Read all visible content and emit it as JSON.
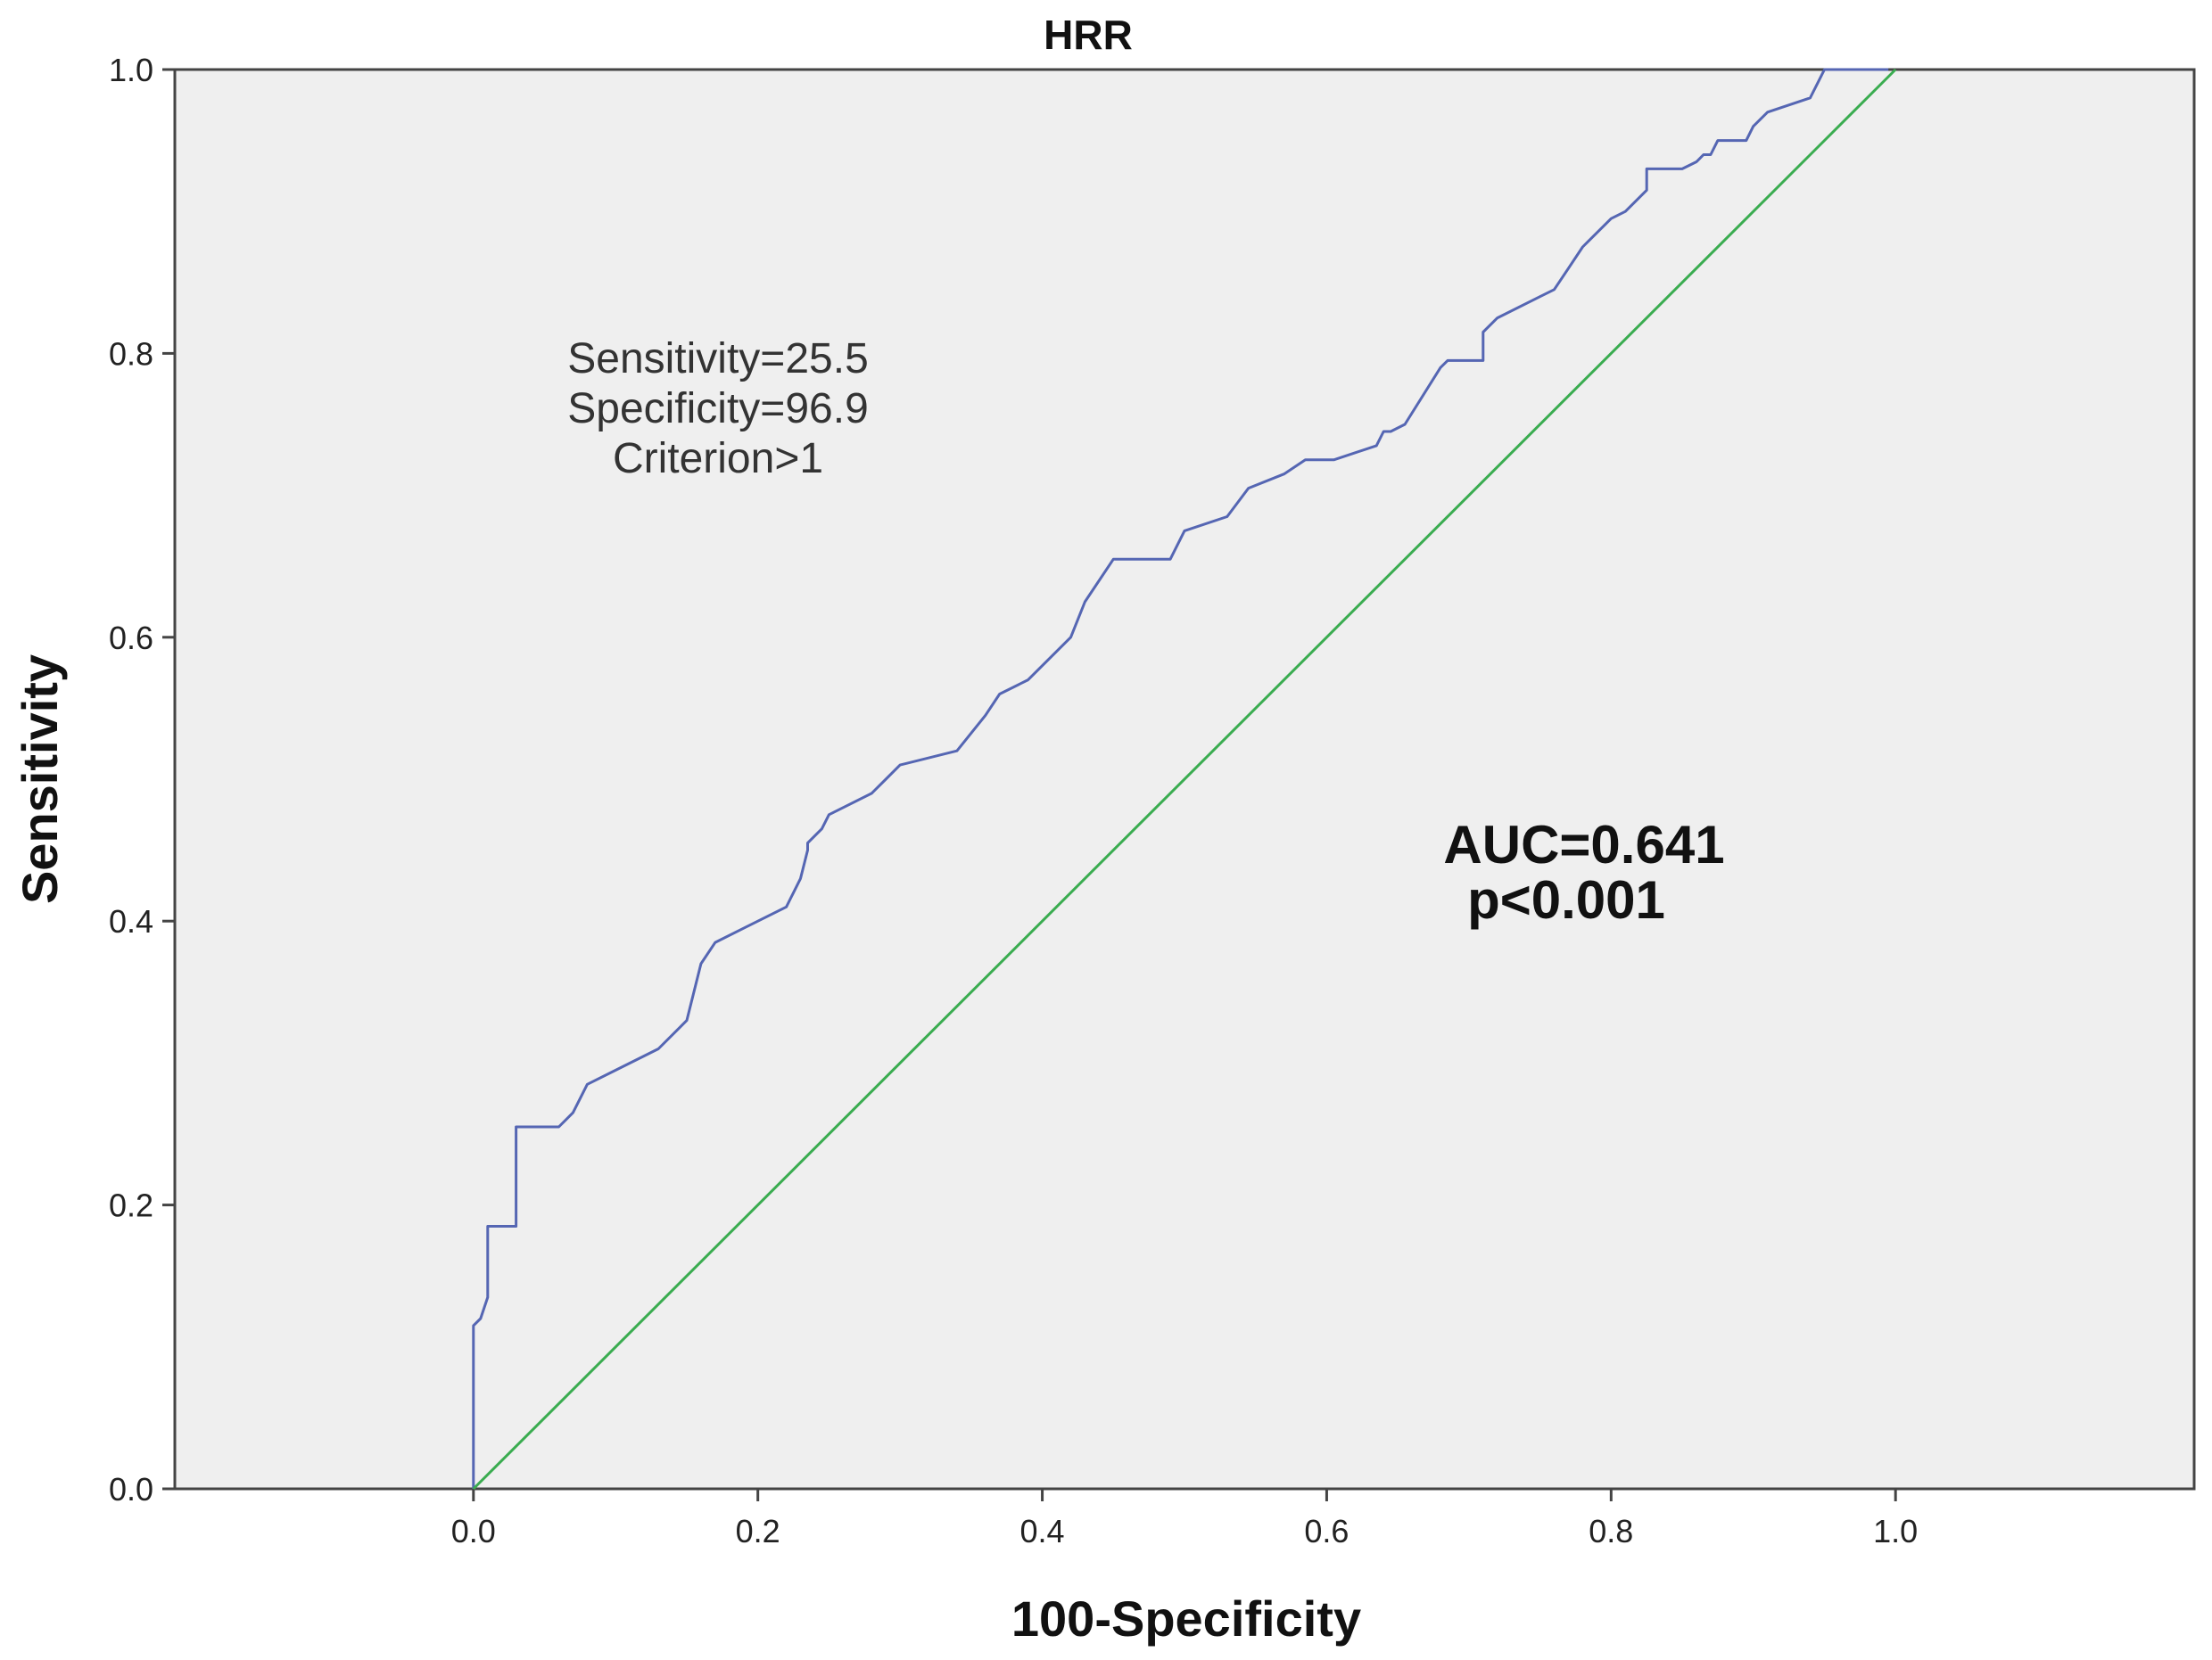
{
  "chart_data": {
    "type": "line",
    "title": "HRR",
    "xlabel": "100-Specificity",
    "ylabel": "Sensitivity",
    "xlim": [
      -0.21,
      1.21
    ],
    "ylim": [
      0,
      1
    ],
    "x_ticks": [
      "0.0",
      "0.2",
      "0.4",
      "0.6",
      "0.8",
      "1.0"
    ],
    "y_ticks": [
      "0.0",
      "0.2",
      "0.4",
      "0.6",
      "0.8",
      "1.0"
    ],
    "grid": false,
    "background": "#efefef",
    "annotations": {
      "criterion": [
        "Sensitivity=25.5",
        "Specificity=96.9",
        "Criterion>1"
      ],
      "stats": [
        "AUC=0.641",
        "p<0.001"
      ]
    },
    "series": [
      {
        "color": "#5566b3",
        "x": [
          0,
          0,
          0.005,
          0.01,
          0.01,
          0.03,
          0.03,
          0.06,
          0.07,
          0.08,
          0.1,
          0.13,
          0.15,
          0.16,
          0.17,
          0.19,
          0.22,
          0.23,
          0.235,
          0.235,
          0.245,
          0.25,
          0.28,
          0.29,
          0.3,
          0.34,
          0.36,
          0.37,
          0.39,
          0.42,
          0.43,
          0.45,
          0.49,
          0.5,
          0.53,
          0.545,
          0.57,
          0.585,
          0.605,
          0.635,
          0.64,
          0.645,
          0.655,
          0.68,
          0.685,
          0.71,
          0.71,
          0.72,
          0.75,
          0.76,
          0.77,
          0.78,
          0.8,
          0.81,
          0.82,
          0.825,
          0.825,
          0.85,
          0.86,
          0.865,
          0.87,
          0.875,
          0.88,
          0.895,
          0.9,
          0.91,
          0.94,
          0.945,
          0.95,
          0.97,
          0.995
        ],
        "y": [
          0,
          0.115,
          0.12,
          0.135,
          0.185,
          0.185,
          0.255,
          0.255,
          0.265,
          0.285,
          0.295,
          0.31,
          0.33,
          0.37,
          0.385,
          0.395,
          0.41,
          0.43,
          0.45,
          0.455,
          0.465,
          0.475,
          0.49,
          0.5,
          0.51,
          0.52,
          0.545,
          0.56,
          0.57,
          0.6,
          0.625,
          0.655,
          0.655,
          0.675,
          0.685,
          0.705,
          0.715,
          0.725,
          0.725,
          0.735,
          0.745,
          0.745,
          0.75,
          0.79,
          0.795,
          0.795,
          0.815,
          0.825,
          0.84,
          0.845,
          0.86,
          0.875,
          0.895,
          0.9,
          0.91,
          0.915,
          0.93,
          0.93,
          0.935,
          0.94,
          0.94,
          0.95,
          0.95,
          0.95,
          0.96,
          0.97,
          0.98,
          0.99,
          1.0,
          1.0,
          1.0
        ]
      },
      {
        "color": "#3aac50",
        "x": [
          0,
          1
        ],
        "y": [
          0,
          1
        ]
      }
    ]
  }
}
